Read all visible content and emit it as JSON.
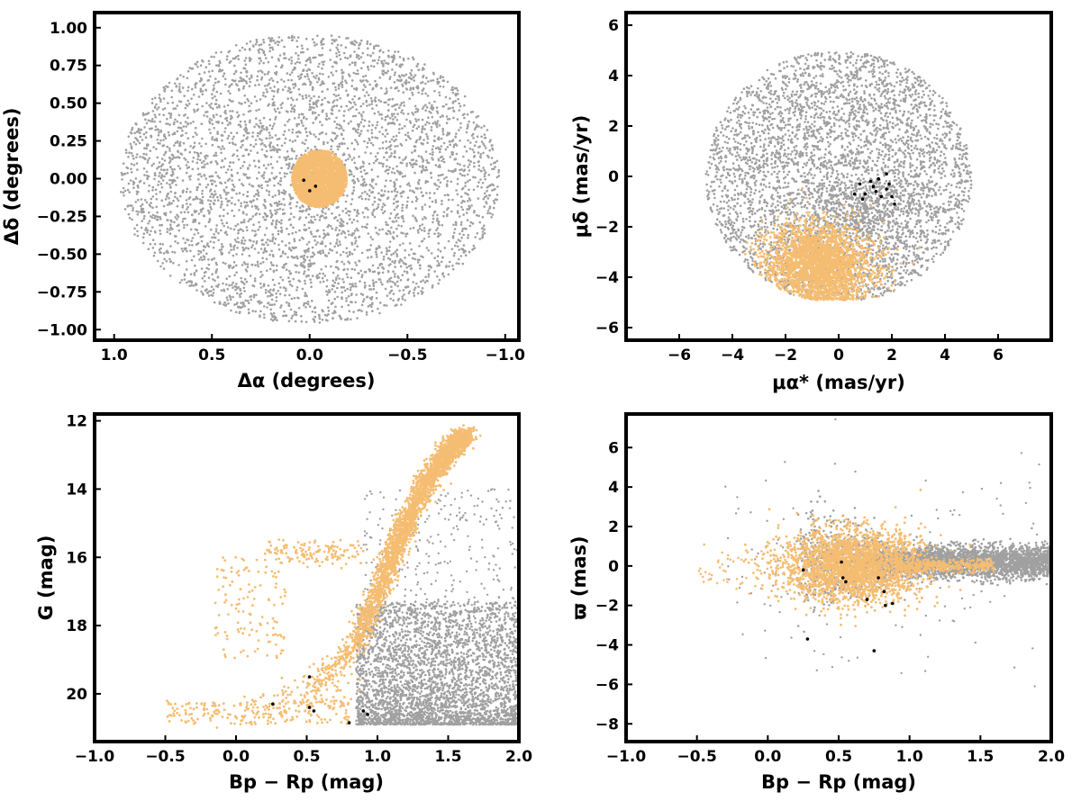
{
  "colors": {
    "field": "#a0a0a0",
    "members": "#f5bd72",
    "highlight": "#000000"
  },
  "chart_data": [
    {
      "id": "spatial",
      "type": "scatter",
      "title": "",
      "xlabel": "Δα (degrees)",
      "ylabel": "Δδ (degrees)",
      "xlim": [
        1.1,
        -1.07
      ],
      "ylim": [
        -1.07,
        1.1
      ],
      "xticks": [
        "1.0",
        "0.5",
        "0.0",
        "−0.5",
        "−1.0"
      ],
      "xtick_values": [
        1.0,
        0.5,
        0.0,
        -0.5,
        -1.0
      ],
      "yticks": [
        "−1.00",
        "−0.75",
        "−0.50",
        "−0.25",
        "0.00",
        "0.25",
        "0.50",
        "0.75",
        "1.00"
      ],
      "ytick_values": [
        -1.0,
        -0.75,
        -0.5,
        -0.25,
        0.0,
        0.25,
        0.5,
        0.75,
        1.0
      ],
      "grid": false,
      "series": [
        {
          "role": "field",
          "color": "#a0a0a0",
          "distribution": "uniform disk",
          "center": [
            0.0,
            0.0
          ],
          "radius": 1.0
        },
        {
          "role": "members",
          "color": "#f5bd72",
          "distribution": "dense cluster",
          "center": [
            -0.05,
            0.0
          ],
          "spread": [
            0.1,
            0.08
          ]
        },
        {
          "role": "highlight",
          "color": "#000000",
          "points": [
            [
              0.03,
              -0.01
            ],
            [
              0.0,
              -0.08
            ],
            [
              -0.03,
              -0.05
            ]
          ]
        }
      ]
    },
    {
      "id": "proper-motion",
      "type": "scatter",
      "title": "",
      "xlabel": "μα* (mas/yr)",
      "ylabel": "μδ (mas/yr)",
      "xlim": [
        -8,
        8
      ],
      "ylim": [
        -6.5,
        6.5
      ],
      "xticks": [
        "−6",
        "−4",
        "−2",
        "0",
        "2",
        "4",
        "6"
      ],
      "xtick_values": [
        -6,
        -4,
        -2,
        0,
        2,
        4,
        6
      ],
      "yticks": [
        "−6",
        "−4",
        "−2",
        "0",
        "2",
        "4",
        "6"
      ],
      "ytick_values": [
        -6,
        -4,
        -2,
        0,
        2,
        4,
        6
      ],
      "grid": false,
      "series": [
        {
          "role": "field",
          "color": "#a0a0a0",
          "distribution": "disk",
          "center": [
            0.0,
            0.0
          ],
          "radius": 5.0
        },
        {
          "role": "members",
          "color": "#f5bd72",
          "distribution": "cluster",
          "center": [
            -0.8,
            -3.5
          ],
          "spread": [
            1.0,
            0.8
          ]
        },
        {
          "role": "highlight",
          "color": "#000000",
          "points": [
            [
              0.6,
              -0.7
            ],
            [
              0.8,
              -0.3
            ],
            [
              1.0,
              -0.7
            ],
            [
              1.2,
              -0.2
            ],
            [
              1.3,
              -0.4
            ],
            [
              1.5,
              -0.1
            ],
            [
              1.6,
              -0.8
            ],
            [
              1.8,
              -0.5
            ],
            [
              1.8,
              0.1
            ],
            [
              1.9,
              -0.3
            ],
            [
              2.0,
              -0.8
            ],
            [
              2.1,
              -1.1
            ],
            [
              0.9,
              -0.9
            ],
            [
              1.4,
              -0.6
            ]
          ]
        }
      ]
    },
    {
      "id": "cmd",
      "type": "scatter",
      "title": "",
      "xlabel": "Bp − Rp (mag)",
      "ylabel": "G (mag)",
      "xlim": [
        -1.0,
        2.0
      ],
      "ylim": [
        21.4,
        11.8
      ],
      "xticks": [
        "−1.0",
        "−0.5",
        "0.0",
        "0.5",
        "1.0",
        "1.5",
        "2.0"
      ],
      "xtick_values": [
        -1.0,
        -0.5,
        0.0,
        0.5,
        1.0,
        1.5,
        2.0
      ],
      "yticks": [
        "12",
        "14",
        "16",
        "18",
        "20"
      ],
      "ytick_values": [
        12,
        14,
        16,
        18,
        20
      ],
      "grid": false,
      "series": [
        {
          "role": "field",
          "color": "#a0a0a0",
          "distribution": "faint field population",
          "x_range": [
            0.9,
            2.0
          ],
          "y_range": [
            17.0,
            20.9
          ]
        },
        {
          "role": "members",
          "color": "#f5bd72",
          "distribution": "main sequence + giant branch",
          "sequence": [
            [
              0.15,
              20.8
            ],
            [
              0.55,
              19.8
            ],
            [
              0.85,
              18.5
            ],
            [
              1.0,
              17.2
            ],
            [
              1.1,
              16.0
            ],
            [
              1.2,
              15.0
            ],
            [
              1.35,
              13.8
            ],
            [
              1.5,
              12.9
            ],
            [
              1.62,
              12.4
            ]
          ]
        },
        {
          "role": "highlight",
          "color": "#000000",
          "points": [
            [
              0.52,
              20.4
            ],
            [
              0.55,
              20.5
            ],
            [
              0.9,
              20.5
            ],
            [
              0.93,
              20.6
            ],
            [
              0.52,
              19.5
            ],
            [
              0.8,
              20.85
            ],
            [
              0.26,
              20.3
            ]
          ]
        }
      ]
    },
    {
      "id": "parallax",
      "type": "scatter",
      "title": "",
      "xlabel": "Bp − Rp (mag)",
      "ylabel": "ϖ (mas)",
      "xlim": [
        -1.0,
        2.0
      ],
      "ylim": [
        -8.9,
        7.7
      ],
      "xticks": [
        "−1.0",
        "−0.5",
        "0.0",
        "0.5",
        "1.0",
        "1.5",
        "2.0"
      ],
      "xtick_values": [
        -1.0,
        -0.5,
        0.0,
        0.5,
        1.0,
        1.5,
        2.0
      ],
      "yticks": [
        "−8",
        "−6",
        "−4",
        "−2",
        "0",
        "2",
        "4",
        "6"
      ],
      "ytick_values": [
        -8,
        -6,
        -4,
        -2,
        0,
        2,
        4,
        6
      ],
      "grid": false,
      "series": [
        {
          "role": "field",
          "color": "#a0a0a0",
          "distribution": "horizontal band",
          "x_range": [
            0.2,
            2.0
          ],
          "y_center": 0.2
        },
        {
          "role": "members",
          "color": "#f5bd72",
          "distribution": "compact cloud",
          "center": [
            0.6,
            0.0
          ],
          "spread": [
            0.25,
            0.9
          ]
        },
        {
          "role": "highlight",
          "color": "#000000",
          "points": [
            [
              0.25,
              -0.2
            ],
            [
              0.28,
              -3.7
            ],
            [
              0.52,
              0.2
            ],
            [
              0.53,
              -0.6
            ],
            [
              0.55,
              -0.8
            ],
            [
              0.7,
              -1.7
            ],
            [
              0.78,
              -0.6
            ],
            [
              0.82,
              -1.3
            ],
            [
              0.88,
              -1.9
            ],
            [
              0.83,
              -2.0
            ],
            [
              0.75,
              -4.3
            ]
          ]
        }
      ]
    }
  ]
}
